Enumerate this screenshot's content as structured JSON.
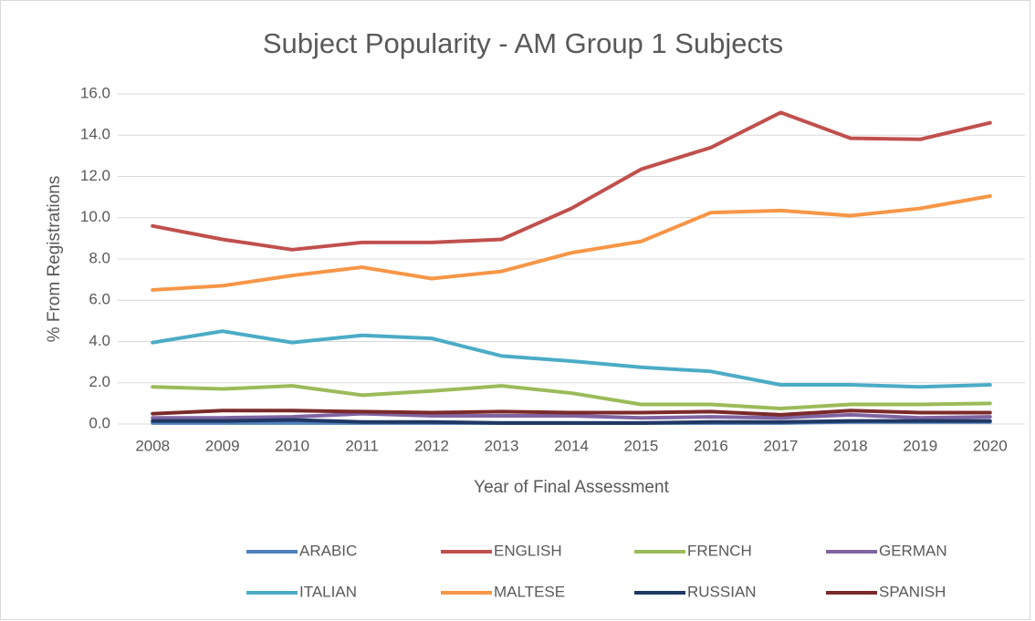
{
  "chart_data": {
    "type": "line",
    "title": "Subject Popularity - AM Group 1 Subjects",
    "x_label": "Year of Final Assessment",
    "y_label": "% From Registrations",
    "categories": [
      "2008",
      "2009",
      "2010",
      "2011",
      "2012",
      "2013",
      "2014",
      "2015",
      "2016",
      "2017",
      "2018",
      "2019",
      "2020"
    ],
    "series": [
      {
        "name": "ARABIC",
        "color": "#4f81bd",
        "values": [
          0.05,
          0.05,
          0.05,
          0.05,
          0.05,
          0.05,
          0.05,
          0.05,
          0.05,
          0.05,
          0.1,
          0.1,
          0.1
        ]
      },
      {
        "name": "ENGLISH",
        "color": "#c0504d",
        "values": [
          9.6,
          8.95,
          8.45,
          8.8,
          8.8,
          8.95,
          10.45,
          12.35,
          13.4,
          15.1,
          13.85,
          13.8,
          14.6
        ]
      },
      {
        "name": "FRENCH",
        "color": "#9bbb59",
        "values": [
          1.8,
          1.7,
          1.85,
          1.4,
          1.6,
          1.85,
          1.5,
          0.95,
          0.95,
          0.75,
          0.95,
          0.95,
          1.0
        ]
      },
      {
        "name": "GERMAN",
        "color": "#8064a2",
        "values": [
          0.3,
          0.3,
          0.35,
          0.5,
          0.4,
          0.4,
          0.4,
          0.3,
          0.35,
          0.3,
          0.45,
          0.3,
          0.35
        ]
      },
      {
        "name": "ITALIAN",
        "color": "#4bacc6",
        "values": [
          3.95,
          4.5,
          3.95,
          4.3,
          4.15,
          3.3,
          3.05,
          2.75,
          2.55,
          1.9,
          1.9,
          1.8,
          1.9
        ]
      },
      {
        "name": "MALTESE",
        "color": "#f79646",
        "values": [
          6.5,
          6.7,
          7.2,
          7.6,
          7.05,
          7.4,
          8.3,
          8.85,
          10.25,
          10.35,
          10.1,
          10.45,
          11.05
        ]
      },
      {
        "name": "RUSSIAN",
        "color": "#1f3864",
        "values": [
          0.15,
          0.15,
          0.2,
          0.1,
          0.1,
          0.05,
          0.05,
          0.05,
          0.1,
          0.1,
          0.15,
          0.15,
          0.15
        ]
      },
      {
        "name": "SPANISH",
        "color": "#7b2a2a",
        "values": [
          0.5,
          0.65,
          0.65,
          0.6,
          0.55,
          0.6,
          0.55,
          0.55,
          0.6,
          0.45,
          0.65,
          0.55,
          0.55
        ]
      }
    ],
    "ylim": [
      0,
      16
    ],
    "yticks": [
      {
        "value": 0,
        "label": "0.0"
      },
      {
        "value": 2,
        "label": "2.0"
      },
      {
        "value": 4,
        "label": "4.0"
      },
      {
        "value": 6,
        "label": "6.0"
      },
      {
        "value": 8,
        "label": "8.0"
      },
      {
        "value": 10,
        "label": "10.0"
      },
      {
        "value": 12,
        "label": "12.0"
      },
      {
        "value": 14,
        "label": "14.0"
      },
      {
        "value": 16,
        "label": "16.0"
      }
    ],
    "grid": true,
    "legend": "bottom"
  }
}
